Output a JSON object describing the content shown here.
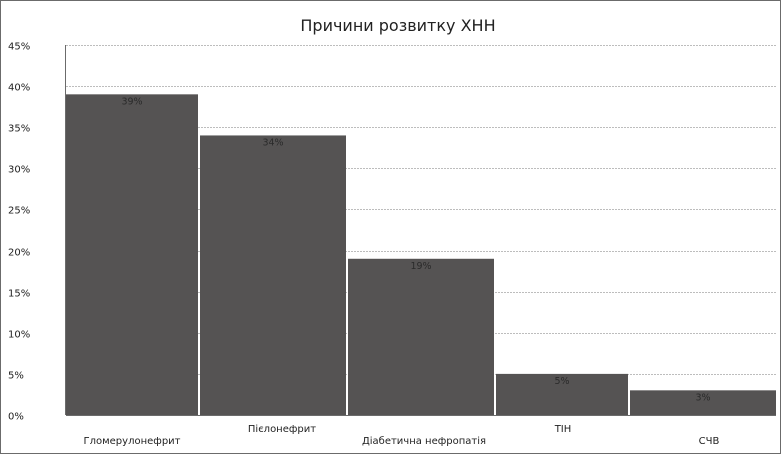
{
  "chart_data": {
    "type": "bar",
    "title": "Причини розвитку ХНН",
    "categories": [
      "Гломерулонефрит",
      "Пієлонефрит",
      "Діабетична нефропатія",
      "ТІН",
      "СЧВ"
    ],
    "values": [
      39,
      34,
      19,
      5,
      3
    ],
    "data_labels": [
      "39%",
      "34%",
      "19%",
      "5%",
      "3%"
    ],
    "y_ticks": [
      0,
      5,
      10,
      15,
      20,
      25,
      30,
      35,
      40,
      45
    ],
    "y_tick_labels": [
      "0%",
      "5%",
      "10%",
      "15%",
      "20%",
      "25%",
      "30%",
      "35%",
      "40%",
      "45%"
    ],
    "ylim": [
      0,
      45
    ],
    "grid": true,
    "legend": "none",
    "bar_color": "#555353",
    "grid_color": "#bdbdbd",
    "frame_color": "#6b6b6b"
  }
}
